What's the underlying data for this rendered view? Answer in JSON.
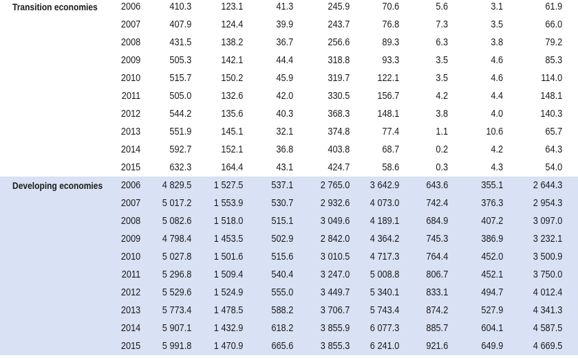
{
  "groups": [
    {
      "label": "Transition economies",
      "shaded": false,
      "rows": [
        [
          "2006",
          "410.3",
          "123.1",
          "41.3",
          "245.9",
          "70.6",
          "5.6",
          "3.1",
          "61.9"
        ],
        [
          "2007",
          "407.9",
          "124.4",
          "39.9",
          "243.7",
          "76.8",
          "7.3",
          "3.5",
          "66.0"
        ],
        [
          "2008",
          "431.5",
          "138.2",
          "36.7",
          "256.6",
          "89.3",
          "6.3",
          "3.8",
          "79.2"
        ],
        [
          "2009",
          "505.3",
          "142.1",
          "44.4",
          "318.8",
          "93.3",
          "3.5",
          "4.6",
          "85.3"
        ],
        [
          "2010",
          "515.7",
          "150.2",
          "45.9",
          "319.7",
          "122.1",
          "3.5",
          "4.6",
          "114.0"
        ],
        [
          "2011",
          "505.0",
          "132.6",
          "42.0",
          "330.5",
          "156.7",
          "4.2",
          "4.4",
          "148.1"
        ],
        [
          "2012",
          "544.2",
          "135.6",
          "40.3",
          "368.3",
          "148.1",
          "3.8",
          "4.0",
          "140.3"
        ],
        [
          "2013",
          "551.9",
          "145.1",
          "32.1",
          "374.8",
          "77.4",
          "1.1",
          "10.6",
          "65.7"
        ],
        [
          "2014",
          "592.7",
          "152.1",
          "36.8",
          "403.8",
          "68.7",
          "0.2",
          "4.2",
          "64.3"
        ],
        [
          "2015",
          "632.3",
          "164.4",
          "43.1",
          "424.7",
          "58.6",
          "0.3",
          "4.3",
          "54.0"
        ]
      ]
    },
    {
      "label": "Developing economies",
      "shaded": true,
      "rows": [
        [
          "2006",
          "4 829.5",
          "1 527.5",
          "537.1",
          "2 765.0",
          "3 642.9",
          "643.6",
          "355.1",
          "2 644.3"
        ],
        [
          "2007",
          "5 017.2",
          "1 553.9",
          "530.7",
          "2 932.6",
          "4 073.0",
          "742.4",
          "376.3",
          "2 954.3"
        ],
        [
          "2008",
          "5 082.6",
          "1 518.0",
          "515.1",
          "3 049.6",
          "4 189.1",
          "684.9",
          "407.2",
          "3 097.0"
        ],
        [
          "2009",
          "4 798.4",
          "1 453.5",
          "502.9",
          "2 842.0",
          "4 364.2",
          "745.3",
          "386.9",
          "3 232.1"
        ],
        [
          "2010",
          "5 027.8",
          "1 501.6",
          "515.6",
          "3 010.5",
          "4 717.3",
          "764.4",
          "452.0",
          "3 500.9"
        ],
        [
          "2011",
          "5 296.8",
          "1 509.4",
          "540.4",
          "3 247.0",
          "5 008.8",
          "806.7",
          "452.1",
          "3 750.0"
        ],
        [
          "2012",
          "5 529.6",
          "1 524.9",
          "555.0",
          "3 449.7",
          "5 340.1",
          "833.1",
          "494.7",
          "4 012.4"
        ],
        [
          "2013",
          "5 773.4",
          "1 478.5",
          "588.2",
          "3 706.7",
          "5 743.4",
          "874.2",
          "527.9",
          "4 341.3"
        ],
        [
          "2014",
          "5 907.1",
          "1 432.9",
          "618.2",
          "3 855.9",
          "6 077.3",
          "885.7",
          "604.1",
          "4 587.5"
        ],
        [
          "2015",
          "5 991.8",
          "1 470.9",
          "665.6",
          "3 855.3",
          "6 241.0",
          "921.6",
          "649.9",
          "4 669.5"
        ]
      ]
    }
  ]
}
